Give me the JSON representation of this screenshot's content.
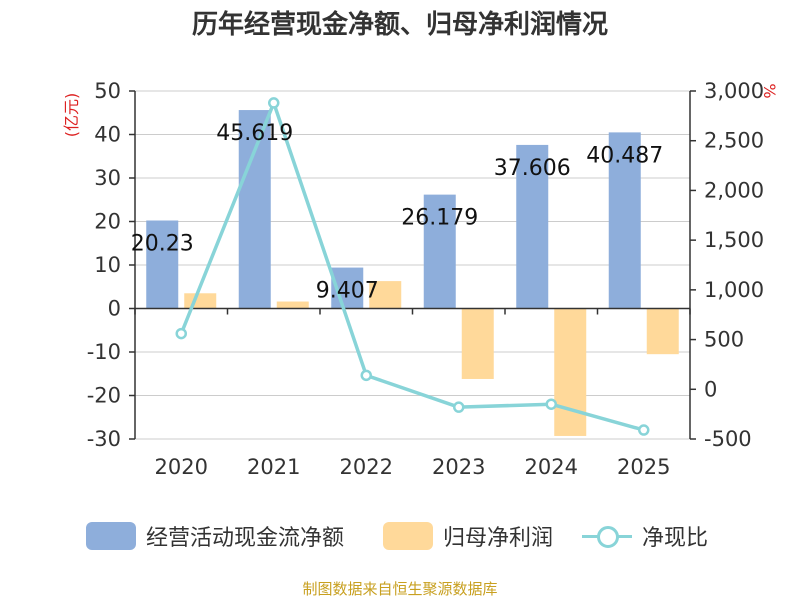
{
  "chart_data": {
    "type": "bar+line",
    "title": "历年经营现金净额、归母净利润情况",
    "categories": [
      "2020",
      "2021",
      "2022",
      "2023",
      "2024",
      "2025"
    ],
    "series": [
      {
        "name": "经营活动现金流净额",
        "type": "bar",
        "axis": "left",
        "color": "#8eaedb",
        "values": [
          20.23,
          45.619,
          9.407,
          26.179,
          37.606,
          40.487
        ],
        "labels": [
          "20.23",
          "45.619",
          "9.407",
          "26.179",
          "37.606",
          "40.487"
        ]
      },
      {
        "name": "归母净利润",
        "type": "bar",
        "axis": "left",
        "color": "#ffd99a",
        "values": [
          3.5,
          1.6,
          6.3,
          -16.2,
          -29.3,
          -10.5
        ]
      },
      {
        "name": "净现比",
        "type": "line",
        "axis": "right",
        "color": "#88d4d8",
        "values": [
          560,
          2880,
          140,
          -180,
          -150,
          -410
        ]
      }
    ],
    "y_left": {
      "label": "(亿元)",
      "min": -30,
      "max": 50,
      "ticks": [
        50,
        40,
        30,
        20,
        10,
        0,
        -10,
        -20,
        -30
      ],
      "tick_labels": [
        "50",
        "40",
        "30",
        "20",
        "10",
        "0",
        "-10",
        "-20",
        "-30"
      ]
    },
    "y_right": {
      "label": "%",
      "min": -500,
      "max": 3000,
      "ticks": [
        3000,
        2500,
        2000,
        1500,
        1000,
        500,
        0,
        -500
      ],
      "tick_labels": [
        "3,000",
        "2,500",
        "2,000",
        "1,500",
        "1,000",
        "500",
        "0",
        "-500"
      ]
    },
    "label_color": "#dd2222",
    "legend": [
      {
        "name": "经营活动现金流净额",
        "color": "#8eaedb",
        "kind": "bar"
      },
      {
        "name": "归母净利润",
        "color": "#ffd99a",
        "kind": "bar"
      },
      {
        "name": "净现比",
        "color": "#88d4d8",
        "kind": "line"
      }
    ],
    "source": "制图数据来自恒生聚源数据库"
  }
}
